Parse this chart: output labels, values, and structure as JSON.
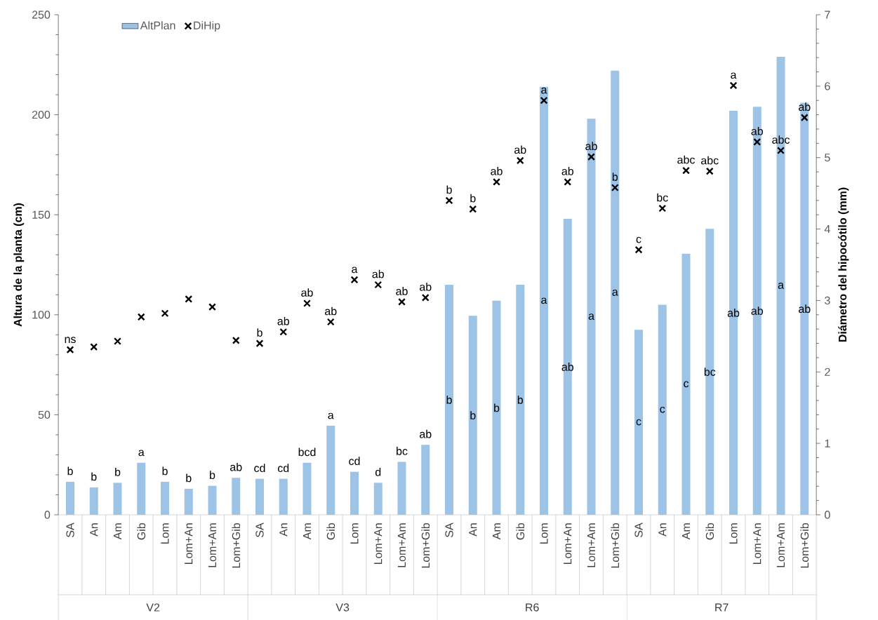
{
  "chart_data": {
    "type": "bar",
    "categories": [
      "SA",
      "An",
      "Am",
      "Gib",
      "Lom",
      "Lom+An",
      "Lom+Am",
      "Lom+Gib",
      "SA",
      "An",
      "Am",
      "Gib",
      "Lom",
      "Lom+An",
      "Lom+Am",
      "Lom+Gib",
      "SA",
      "An",
      "Am",
      "Gib",
      "Lom",
      "Lom+An",
      "Lom+Am",
      "Lom+Gib",
      "SA",
      "An",
      "Am",
      "Gib",
      "Lom",
      "Lom+An",
      "Lom+Am",
      "Lom+Gib"
    ],
    "series": [
      {
        "name": "AltPlan",
        "color": "#9dc3e6",
        "values": [
          16.5,
          13.7,
          16,
          26,
          16.5,
          13,
          14.5,
          18.5,
          18,
          18,
          26,
          44.5,
          21.5,
          16,
          26.5,
          35,
          115,
          99.5,
          107,
          115,
          214,
          148,
          198,
          222,
          92.5,
          105,
          130.5,
          143,
          202,
          204,
          229,
          206
        ],
        "value_labels": [
          "b",
          "b",
          "b",
          "a",
          "b",
          "b",
          "b",
          "ab",
          "cd",
          "cd",
          "bcd",
          "a",
          "cd",
          "d",
          "bc",
          "ab",
          "b",
          "b",
          "b",
          "b",
          "a",
          "ab",
          "a",
          "a",
          "c",
          "c",
          "c",
          "bc",
          "ab",
          "ab",
          "a",
          "ab"
        ]
      },
      {
        "name": "DiHip",
        "type": "scatter",
        "axis": "y2",
        "marker": "cross",
        "color": "#000000",
        "values": [
          2.31,
          2.35,
          2.43,
          2.77,
          2.82,
          3.02,
          2.91,
          2.44,
          2.4,
          2.56,
          2.96,
          2.7,
          3.29,
          3.22,
          2.98,
          3.04,
          4.4,
          4.28,
          4.66,
          4.96,
          5.8,
          4.66,
          5.01,
          4.58,
          3.71,
          4.29,
          4.82,
          4.81,
          6.01,
          5.22,
          5.1,
          5.56
        ],
        "value_labels": [
          "ns",
          null,
          null,
          null,
          null,
          null,
          null,
          null,
          "b",
          "ab",
          "ab",
          "ab",
          "a",
          "ab",
          "ab",
          "ab",
          "b",
          "b",
          "ab",
          "ab",
          "a",
          "ab",
          "ab",
          "b",
          "c",
          "bc",
          "abc",
          "abc",
          "a",
          "ab",
          "abc",
          "ab"
        ]
      }
    ],
    "ylabel": "Altura de la planta (cm)",
    "y2label": "Diámetro del hipocótilo (mm)",
    "ylim": [
      0,
      250
    ],
    "yticks": [
      0,
      50,
      100,
      150,
      200,
      250
    ],
    "y2lim": [
      0,
      7
    ],
    "y2ticks": [
      0,
      1,
      2,
      3,
      4,
      5,
      6,
      7
    ],
    "annotations": [
      "V2",
      "V3",
      "R6",
      "R7"
    ],
    "legend": "top left"
  }
}
